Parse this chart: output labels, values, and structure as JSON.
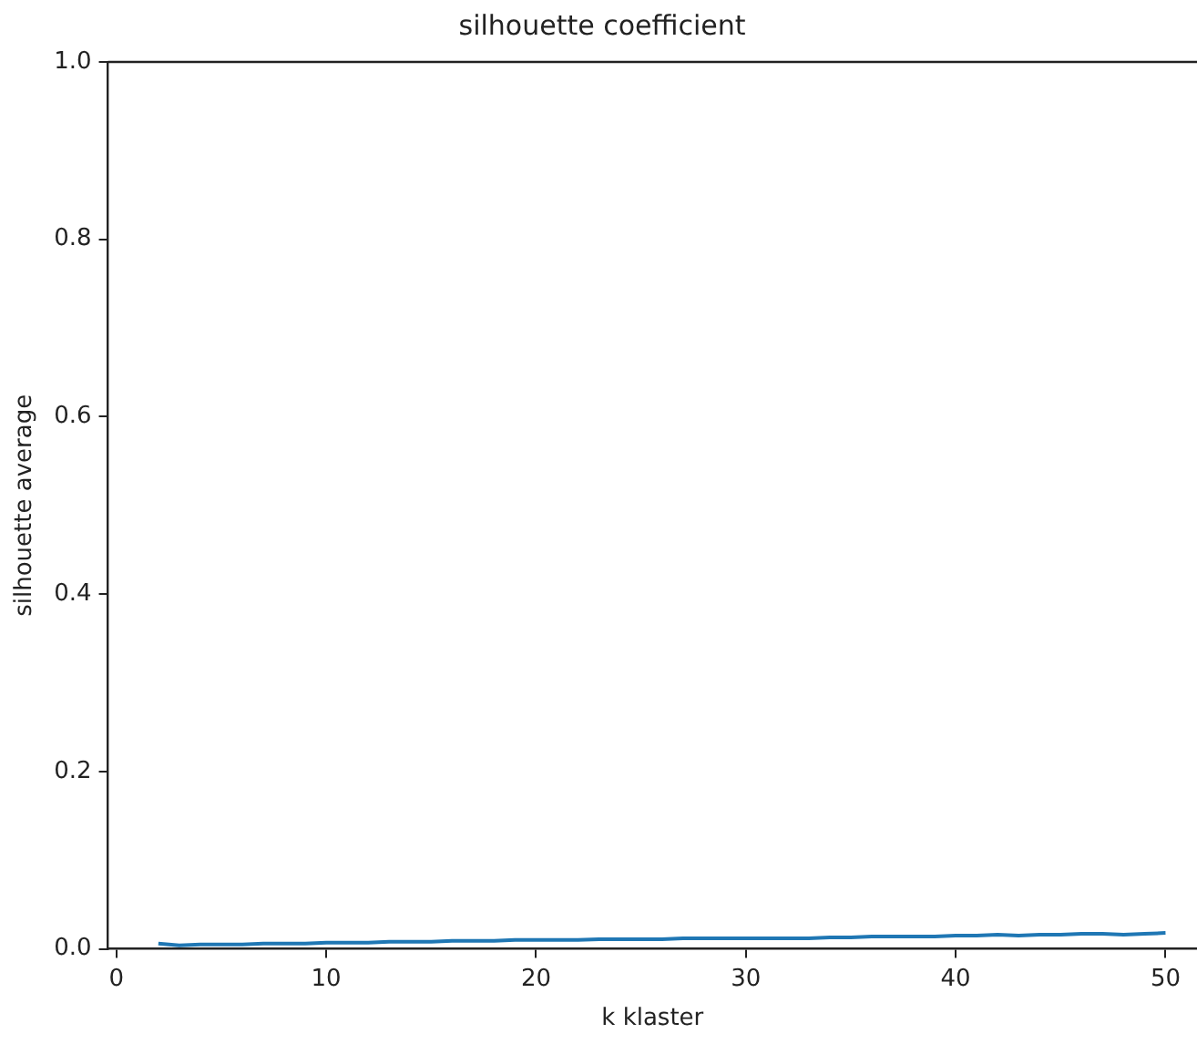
{
  "chart_data": {
    "type": "line",
    "title": "silhouette coefficient",
    "xlabel": "k klaster",
    "ylabel": "silhouette average",
    "x": [
      2,
      3,
      4,
      5,
      6,
      7,
      8,
      9,
      10,
      11,
      12,
      13,
      14,
      15,
      16,
      17,
      18,
      19,
      20,
      21,
      22,
      23,
      24,
      25,
      26,
      27,
      28,
      29,
      30,
      31,
      32,
      33,
      34,
      35,
      36,
      37,
      38,
      39,
      40,
      41,
      42,
      43,
      44,
      45,
      46,
      47,
      48,
      49,
      50
    ],
    "series": [
      {
        "color": "#1f77b4",
        "values": [
          0.006,
          0.004,
          0.005,
          0.005,
          0.005,
          0.006,
          0.006,
          0.006,
          0.007,
          0.007,
          0.007,
          0.008,
          0.008,
          0.008,
          0.009,
          0.009,
          0.009,
          0.01,
          0.01,
          0.01,
          0.01,
          0.011,
          0.011,
          0.011,
          0.011,
          0.012,
          0.012,
          0.012,
          0.012,
          0.012,
          0.012,
          0.012,
          0.013,
          0.013,
          0.014,
          0.014,
          0.014,
          0.014,
          0.015,
          0.015,
          0.016,
          0.015,
          0.016,
          0.016,
          0.017,
          0.017,
          0.016,
          0.017,
          0.018
        ]
      }
    ],
    "xlim": [
      -0.4,
      51.5
    ],
    "xticks": [
      0,
      10,
      20,
      30,
      40,
      50
    ],
    "ylim": [
      0,
      1
    ],
    "yticks": [
      {
        "value": 0,
        "label": "0.0"
      },
      0.2,
      0.4,
      0.6,
      0.8,
      {
        "value": 1,
        "label": "1.0"
      }
    ],
    "grid": false,
    "legend": false,
    "marker": "none",
    "line_style": "solid"
  }
}
